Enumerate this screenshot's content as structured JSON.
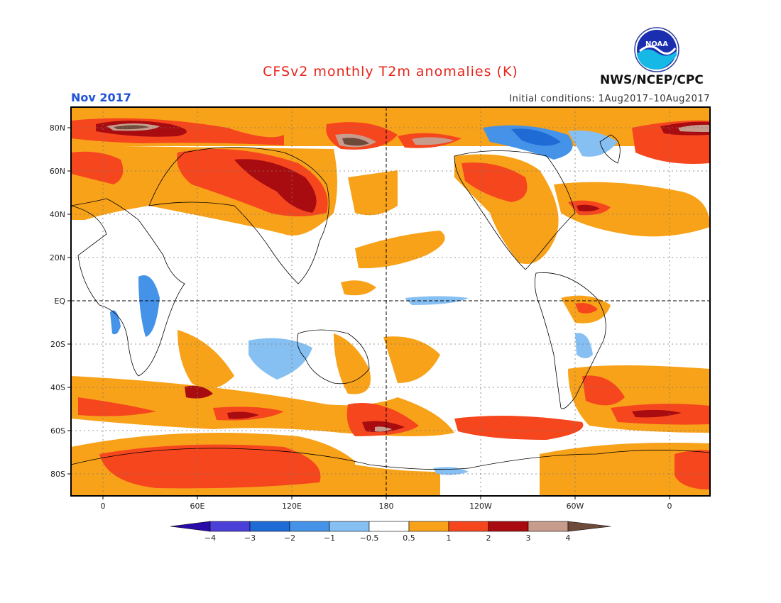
{
  "header": {
    "title": "CFSv2 monthly T2m anomalies (K)",
    "month": "Nov 2017",
    "initial_conditions": "Initial conditions: 1Aug2017–10Aug2017",
    "org": "NWS/NCEP/CPC",
    "logo_icon": "noaa-logo-icon"
  },
  "colors": {
    "title": "#e8231a",
    "month": "#1f54d6",
    "bin_colors": [
      "#2a0aa8",
      "#4a3fd6",
      "#1f6bd6",
      "#4593e8",
      "#86bff2",
      "#ffffff",
      "#f8a21a",
      "#f6461e",
      "#a80c10",
      "#c89c8c",
      "#6e4a3a"
    ]
  },
  "map": {
    "lat_labels": [
      "80N",
      "60N",
      "40N",
      "20N",
      "EQ",
      "20S",
      "40S",
      "60S",
      "80S"
    ],
    "lon_labels": [
      "0",
      "60E",
      "120E",
      "180",
      "120W",
      "60W",
      "0"
    ]
  },
  "colorbar": {
    "tick_labels": [
      "−4",
      "−3",
      "−2",
      "−1",
      "−0.5",
      "0.5",
      "1",
      "2",
      "3",
      "4"
    ]
  }
}
